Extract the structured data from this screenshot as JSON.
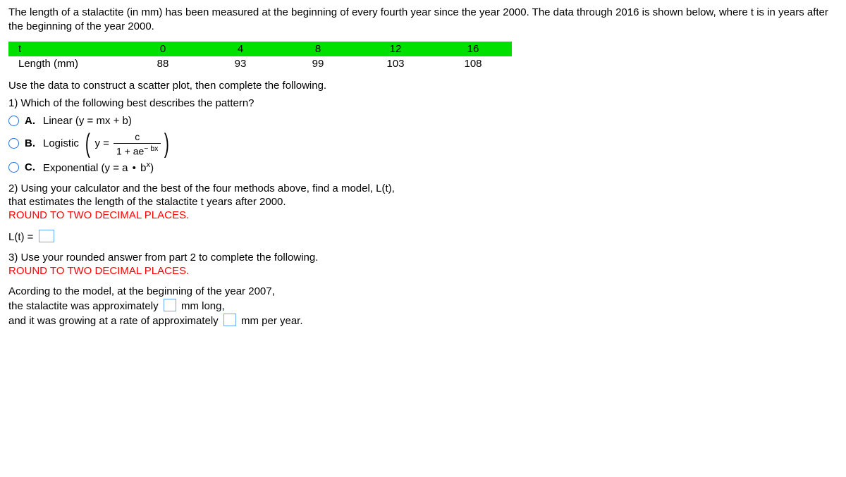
{
  "intro": "The length of a stalactite (in mm) has been measured at the beginning of every fourth year since the year 2000.  The data through 2016 is shown below, where t is in years after the beginning of the year 2000.",
  "table": {
    "row1_label": "t",
    "row2_label": "Length (mm)",
    "t": [
      "0",
      "4",
      "8",
      "12",
      "16"
    ],
    "len": [
      "88",
      "93",
      "99",
      "103",
      "108"
    ],
    "hdr_bg": "#00e000"
  },
  "instr1": "Use the data to construct a scatter plot, then complete the following.",
  "q1": "1) Which of the following best describes the pattern?",
  "optA_label": "A.",
  "optA_text": "Linear (y = mx + b)",
  "optB_label": "B.",
  "optB_prefix": "Logistic",
  "optB_y_eq": "y =",
  "optB_num": "c",
  "optB_den_pre": "1 + ae",
  "optB_exp": "− bx",
  "optC_label": "C.",
  "optC_pre": "Exponential (y = a",
  "optC_dot": "•",
  "optC_post": ")",
  "optC_b": "b",
  "optC_x": "x",
  "q2a": "2) Using your calculator and the best of the four methods above, find a model, L(t),",
  "q2b": "that estimates the length of the stalactite t years after 2000.",
  "round": "ROUND TO TWO DECIMAL PLACES.",
  "lt_label": "L(t) = ",
  "q3a": "3) Use your rounded answer from part 2 to complete the following.",
  "ans1": "Acording to the model, at the beginning of the year 2007,",
  "ans2a": "the stalactite was approximately ",
  "ans2b": " mm long,",
  "ans3a": "and it was growing at a rate of approximately ",
  "ans3b": " mm per year."
}
